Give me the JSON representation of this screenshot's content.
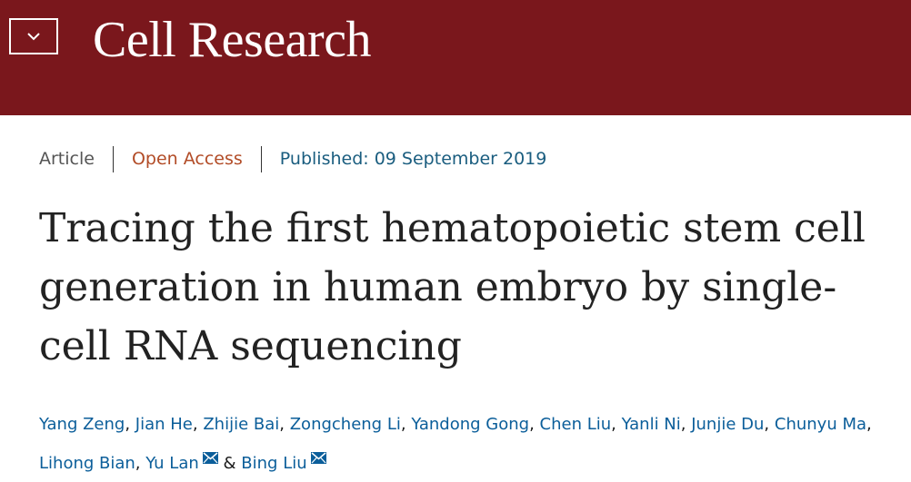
{
  "header": {
    "journal_title": "Cell Research",
    "background_color": "#7a171c",
    "menu_icon": "chevron-down-icon"
  },
  "meta": {
    "article_type": "Article",
    "access": "Open Access",
    "published": "Published: 09 September 2019"
  },
  "article": {
    "title": "Tracing the first hematopoietic stem cell generation in human embryo by single-cell RNA sequencing"
  },
  "authors": [
    {
      "name": "Yang Zeng",
      "suffix": ", "
    },
    {
      "name": "Jian He",
      "suffix": ", "
    },
    {
      "name": "Zhijie Bai",
      "suffix": ", "
    },
    {
      "name": "Zongcheng Li",
      "suffix": ", "
    },
    {
      "name": "Yandong Gong",
      "suffix": ", "
    },
    {
      "name": "Chen Liu",
      "suffix": ", "
    },
    {
      "name": "Yanli Ni",
      "suffix": ", "
    },
    {
      "name": "Junjie Du",
      "suffix": ", "
    },
    {
      "name": "Chunyu Ma",
      "suffix": ", "
    },
    {
      "name": "Lihong Bian",
      "suffix": ", "
    },
    {
      "name": "Yu Lan",
      "suffix": "",
      "email_icon": "mail-icon"
    },
    {
      "name": "Bing Liu",
      "suffix": "",
      "email_icon": "mail-icon"
    }
  ],
  "authors_connector": "&",
  "colors": {
    "link": "#0b5e9a",
    "open_access": "#b24c27",
    "published": "#1a5d7f"
  }
}
